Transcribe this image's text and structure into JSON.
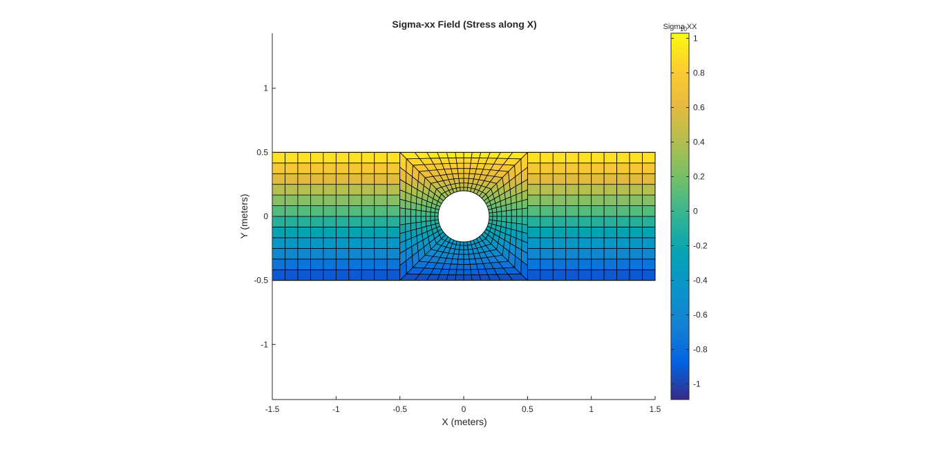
{
  "chart_data": {
    "type": "heatmap",
    "title": "Sigma-xx Field (Stress along X)",
    "xlabel": "X (meters)",
    "ylabel": "Y (meters)",
    "xlim": [
      -1.5,
      1.5
    ],
    "ylim": [
      -1.43,
      1.43
    ],
    "x_ticks": [
      -1.5,
      -1,
      -0.5,
      0,
      0.5,
      1,
      1.5
    ],
    "x_tick_labels": [
      "-1.5",
      "-1",
      "-0.5",
      "0",
      "0.5",
      "1",
      "1.5"
    ],
    "y_ticks": [
      -1,
      -0.5,
      0,
      0.5,
      1
    ],
    "y_tick_labels": [
      "-1",
      "-0.5",
      "0",
      "0.5",
      "1"
    ],
    "plate": {
      "x": [
        -1.5,
        1.5
      ],
      "y": [
        -0.5,
        0.5
      ]
    },
    "hole": {
      "center": [
        0,
        0
      ],
      "radius": 0.2
    },
    "mesh": {
      "outer_columns_per_side": 10,
      "rows": 12,
      "hole_block": [
        -0.5,
        0.5
      ],
      "radial_rings": 8,
      "angular_divisions": 48
    },
    "field_description_value": "sigma_xx",
    "colorbar": {
      "title": "Sigma XX",
      "exponent": "10",
      "limits": [
        -1.09,
        1.03
      ],
      "ticks": [
        -1,
        -0.8,
        -0.6,
        -0.4,
        -0.2,
        0,
        0.2,
        0.4,
        0.6,
        0.8,
        1
      ],
      "tick_labels": [
        "-1",
        "-0.8",
        "-0.6",
        "-0.4",
        "-0.2",
        "0",
        "0.2",
        "0.4",
        "0.6",
        "0.8",
        "1"
      ],
      "colormap": "parula"
    },
    "grid": false,
    "legend": "none"
  }
}
